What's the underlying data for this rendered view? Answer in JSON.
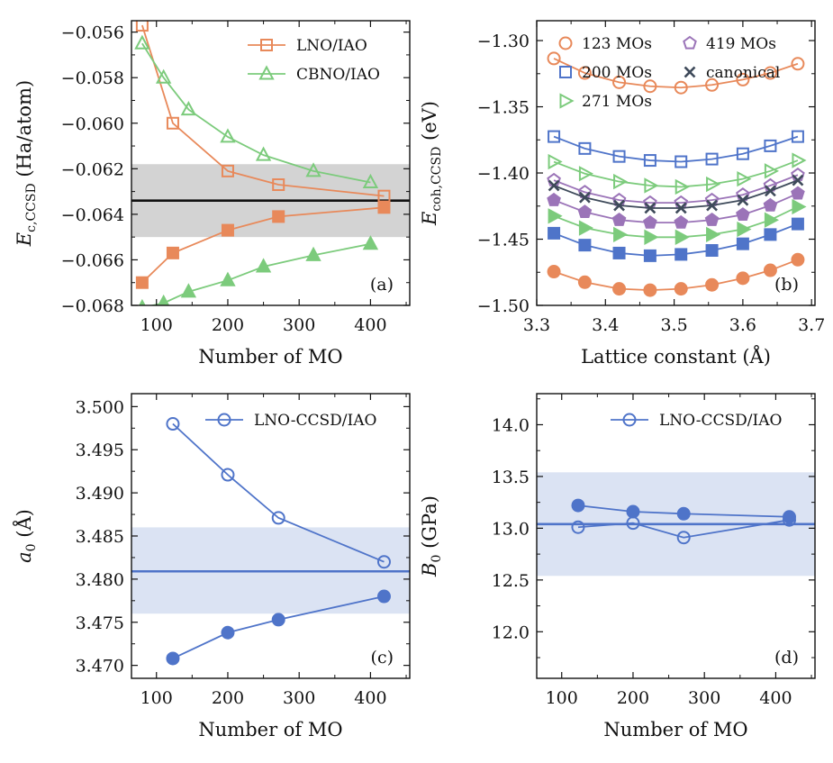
{
  "figure": {
    "panels": [
      "a",
      "b",
      "c",
      "d"
    ]
  },
  "chart_data": [
    {
      "id": "a",
      "type": "line",
      "panel_tag": "(a)",
      "xlabel": "Number of MO",
      "ylabel_main": "E",
      "ylabel_sub": "c,CCSD",
      "ylabel_unit": " (Ha/atom)",
      "xlim": [
        65,
        455
      ],
      "ylim": [
        -0.068,
        -0.0555
      ],
      "xticks": [
        100,
        200,
        300,
        400
      ],
      "xtick_labels": [
        "100",
        "200",
        "300",
        "400"
      ],
      "yticks": [
        -0.056,
        -0.058,
        -0.06,
        -0.062,
        -0.064,
        -0.066,
        -0.068
      ],
      "ytick_labels": [
        "−0.056",
        "−0.058",
        "−0.060",
        "−0.062",
        "−0.064",
        "−0.066",
        "−0.068"
      ],
      "band": {
        "y0": -0.065,
        "y1": -0.0618,
        "color": "#d3d3d3"
      },
      "reference": {
        "y": -0.0634,
        "color": "#111111"
      },
      "legend_position": "top-right",
      "series": [
        {
          "name": "LNO/IAO",
          "color": "#e8895a",
          "marker": "square",
          "fill": false,
          "legend": true,
          "x": [
            80,
            123,
            200,
            271,
            419
          ],
          "y": [
            -0.0557,
            -0.06,
            -0.0621,
            -0.0627,
            -0.0632
          ]
        },
        {
          "name": "LNO/IAO",
          "color": "#e8895a",
          "marker": "square",
          "fill": true,
          "legend": false,
          "x": [
            80,
            123,
            200,
            271,
            419
          ],
          "y": [
            -0.067,
            -0.0657,
            -0.0647,
            -0.0641,
            -0.0637
          ]
        },
        {
          "name": "CBNO/IAO",
          "color": "#7ccb7c",
          "marker": "triangle",
          "fill": false,
          "legend": true,
          "x": [
            80,
            110,
            145,
            200,
            250,
            320,
            400
          ],
          "y": [
            -0.0565,
            -0.058,
            -0.0594,
            -0.0606,
            -0.0614,
            -0.0621,
            -0.0626
          ]
        },
        {
          "name": "CBNO/IAO",
          "color": "#7ccb7c",
          "marker": "triangle",
          "fill": true,
          "legend": false,
          "x": [
            80,
            110,
            145,
            200,
            250,
            320,
            400
          ],
          "y": [
            -0.0681,
            -0.0679,
            -0.0674,
            -0.0669,
            -0.0663,
            -0.0658,
            -0.0653
          ]
        }
      ]
    },
    {
      "id": "b",
      "type": "line",
      "panel_tag": "(b)",
      "xlabel": "Lattice constant (Å)",
      "ylabel_main": "E",
      "ylabel_sub": "coh,CCSD",
      "ylabel_unit": " (eV)",
      "xlim": [
        3.3,
        3.705
      ],
      "ylim": [
        -1.5,
        -1.285
      ],
      "xticks": [
        3.3,
        3.4,
        3.5,
        3.6,
        3.7
      ],
      "xtick_labels": [
        "3.3",
        "3.4",
        "3.5",
        "3.6",
        "3.7"
      ],
      "yticks": [
        -1.3,
        -1.35,
        -1.4,
        -1.45,
        -1.5
      ],
      "ytick_labels": [
        "−1.30",
        "−1.35",
        "−1.40",
        "−1.45",
        "−1.50"
      ],
      "legend_position": "top",
      "x": [
        3.325,
        3.37,
        3.42,
        3.465,
        3.51,
        3.555,
        3.6,
        3.64,
        3.68
      ],
      "series": [
        {
          "name": "123 MOs",
          "color": "#e8895a",
          "marker": "circle",
          "fill": false,
          "legend": true,
          "y": [
            -1.3135,
            -1.3245,
            -1.3315,
            -1.3345,
            -1.3355,
            -1.3335,
            -1.3295,
            -1.3245,
            -1.3175
          ]
        },
        {
          "name": "200 MOs",
          "color": "#4f74c9",
          "marker": "square",
          "fill": false,
          "legend": true,
          "y": [
            -1.3725,
            -1.3815,
            -1.3875,
            -1.3905,
            -1.3915,
            -1.3895,
            -1.3855,
            -1.3795,
            -1.3725
          ]
        },
        {
          "name": "271 MOs",
          "color": "#7ccb7c",
          "marker": "triangle-right",
          "fill": false,
          "legend": true,
          "y": [
            -1.3915,
            -1.4005,
            -1.4065,
            -1.4095,
            -1.4105,
            -1.4085,
            -1.4045,
            -1.3985,
            -1.3905
          ]
        },
        {
          "name": "419 MOs",
          "color": "#9b74b8",
          "marker": "pentagon",
          "fill": false,
          "legend": true,
          "y": [
            -1.4055,
            -1.4145,
            -1.4205,
            -1.4225,
            -1.4225,
            -1.4205,
            -1.4165,
            -1.4095,
            -1.4015
          ]
        },
        {
          "name": "canonical",
          "color": "#3e4a5a",
          "marker": "x",
          "fill": false,
          "legend": true,
          "y": [
            -1.4095,
            -1.4185,
            -1.4245,
            -1.4265,
            -1.4265,
            -1.4245,
            -1.4205,
            -1.4135,
            -1.4055
          ]
        },
        {
          "name": "419 MOs",
          "color": "#9b74b8",
          "marker": "pentagon",
          "fill": true,
          "legend": false,
          "y": [
            -1.4205,
            -1.4295,
            -1.4355,
            -1.4375,
            -1.4375,
            -1.4355,
            -1.4315,
            -1.4245,
            -1.4155
          ]
        },
        {
          "name": "271 MOs",
          "color": "#7ccb7c",
          "marker": "triangle-right",
          "fill": true,
          "legend": false,
          "y": [
            -1.4325,
            -1.4415,
            -1.4465,
            -1.4485,
            -1.4485,
            -1.4465,
            -1.4425,
            -1.4355,
            -1.4255
          ]
        },
        {
          "name": "200 MOs",
          "color": "#4f74c9",
          "marker": "square",
          "fill": true,
          "legend": false,
          "y": [
            -1.4455,
            -1.4545,
            -1.4605,
            -1.4625,
            -1.4615,
            -1.4585,
            -1.4535,
            -1.4465,
            -1.4385
          ]
        },
        {
          "name": "123 MOs",
          "color": "#e8895a",
          "marker": "circle",
          "fill": true,
          "legend": false,
          "y": [
            -1.4745,
            -1.4825,
            -1.4875,
            -1.4885,
            -1.4875,
            -1.4845,
            -1.4795,
            -1.4735,
            -1.4655
          ]
        }
      ]
    },
    {
      "id": "c",
      "type": "line",
      "panel_tag": "(c)",
      "xlabel": "Number of MO",
      "ylabel_main": "a",
      "ylabel_sub": "0",
      "ylabel_unit": " (Å)",
      "xlim": [
        65,
        455
      ],
      "ylim": [
        3.4685,
        3.5015
      ],
      "xticks": [
        100,
        200,
        300,
        400
      ],
      "xtick_labels": [
        "100",
        "200",
        "300",
        "400"
      ],
      "yticks": [
        3.47,
        3.475,
        3.48,
        3.485,
        3.49,
        3.495,
        3.5
      ],
      "ytick_labels": [
        "3.470",
        "3.475",
        "3.480",
        "3.485",
        "3.490",
        "3.495",
        "3.500"
      ],
      "band": {
        "y0": 3.476,
        "y1": 3.486,
        "color": "#dbe3f3"
      },
      "reference": {
        "y": 3.4809,
        "color": "#4f74c9"
      },
      "legend_position": "top-right",
      "series": [
        {
          "name": "LNO-CCSD/IAO",
          "color": "#4f74c9",
          "marker": "circle",
          "fill": false,
          "legend": true,
          "x": [
            123,
            200,
            271,
            419
          ],
          "y": [
            3.498,
            3.4921,
            3.4871,
            3.482
          ]
        },
        {
          "name": "LNO-CCSD/IAO",
          "color": "#4f74c9",
          "marker": "circle",
          "fill": true,
          "legend": false,
          "x": [
            123,
            200,
            271,
            419
          ],
          "y": [
            3.4708,
            3.4738,
            3.4753,
            3.478
          ]
        }
      ]
    },
    {
      "id": "d",
      "type": "line",
      "panel_tag": "(d)",
      "xlabel": "Number of MO",
      "ylabel_main": "B",
      "ylabel_sub": "0",
      "ylabel_unit": " (GPa)",
      "xlim": [
        65,
        455
      ],
      "ylim": [
        11.55,
        14.3
      ],
      "xticks": [
        100,
        200,
        300,
        400
      ],
      "xtick_labels": [
        "100",
        "200",
        "300",
        "400"
      ],
      "yticks": [
        12.0,
        12.5,
        13.0,
        13.5,
        14.0
      ],
      "ytick_labels": [
        "12.0",
        "12.5",
        "13.0",
        "13.5",
        "14.0"
      ],
      "band": {
        "y0": 12.54,
        "y1": 13.54,
        "color": "#dbe3f3"
      },
      "reference": {
        "y": 13.04,
        "color": "#4f74c9"
      },
      "legend_position": "top-right",
      "series": [
        {
          "name": "LNO-CCSD/IAO",
          "color": "#4f74c9",
          "marker": "circle",
          "fill": false,
          "legend": true,
          "x": [
            123,
            200,
            271,
            419
          ],
          "y": [
            13.01,
            13.05,
            12.91,
            13.08
          ]
        },
        {
          "name": "LNO-CCSD/IAO",
          "color": "#4f74c9",
          "marker": "circle",
          "fill": true,
          "legend": false,
          "x": [
            123,
            200,
            271,
            419
          ],
          "y": [
            13.22,
            13.16,
            13.14,
            13.11
          ]
        }
      ]
    }
  ]
}
